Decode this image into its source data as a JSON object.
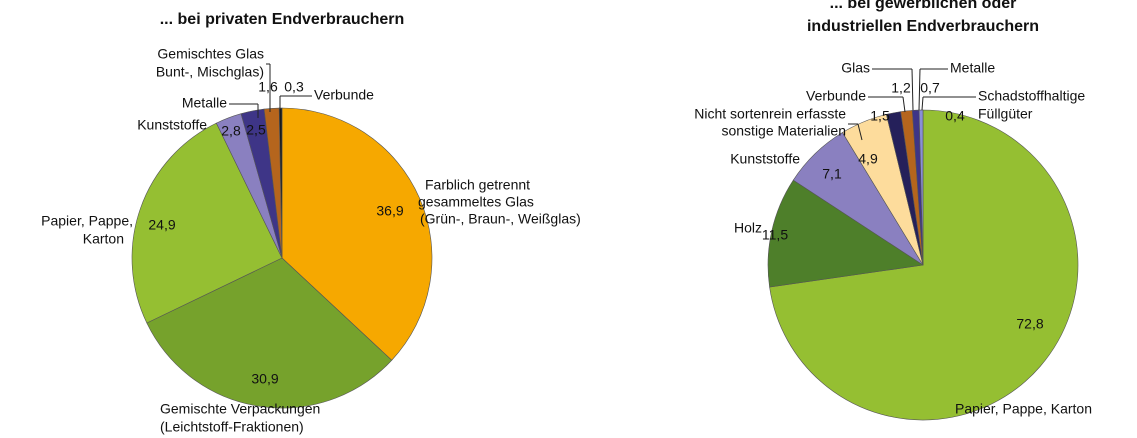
{
  "chart_data": [
    {
      "type": "pie",
      "title": "... bei privaten Endverbrauchern",
      "categories": [
        [
          "Farblich getrennt",
          "gesammeltes Glas",
          "(Grün-, Braun-, Weißglas)"
        ],
        [
          "Gemischte Verpackungen",
          "(Leichtstoff-Fraktionen)"
        ],
        [
          "Papier, Pappe,",
          "Karton"
        ],
        [
          "Kunststoffe"
        ],
        [
          "Metalle"
        ],
        [
          "Gemischtes Glas",
          "Bunt-, Mischglas)"
        ],
        [
          "Verbunde"
        ]
      ],
      "values": [
        36.9,
        30.9,
        24.9,
        2.8,
        2.5,
        1.6,
        0.3
      ],
      "value_labels": [
        "36,9",
        "30,9",
        "24,9",
        "2,8",
        "2,5",
        "1,6",
        "0,3"
      ],
      "colors": [
        "#f6a800",
        "#76a22c",
        "#95bf32",
        "#8a80c0",
        "#3e3587",
        "#b5651d",
        "#1a1a1a"
      ]
    },
    {
      "type": "pie",
      "title": [
        "... bei gewerblichen oder",
        "industriellen Endverbrauchern"
      ],
      "categories": [
        [
          "Papier, Pappe, Karton"
        ],
        [
          "Holz"
        ],
        [
          "Kunststoffe"
        ],
        [
          "Nicht sortenrein erfasste",
          "sonstige Materialien"
        ],
        [
          "Verbunde"
        ],
        [
          "Glas"
        ],
        [
          "Metalle"
        ],
        [
          "Schadstoffhaltige",
          "Füllgüter"
        ]
      ],
      "values": [
        72.8,
        11.5,
        7.1,
        4.9,
        1.5,
        1.2,
        0.7,
        0.4
      ],
      "value_labels": [
        "72,8",
        "11,5",
        "7,1",
        "4,9",
        "1,5",
        "1,2",
        "0,7",
        "0,4"
      ],
      "colors": [
        "#95bf32",
        "#4e7f2a",
        "#8a80c0",
        "#fddc9c",
        "#25205a",
        "#b5651d",
        "#3e3587",
        "#8a8fd8"
      ]
    }
  ]
}
